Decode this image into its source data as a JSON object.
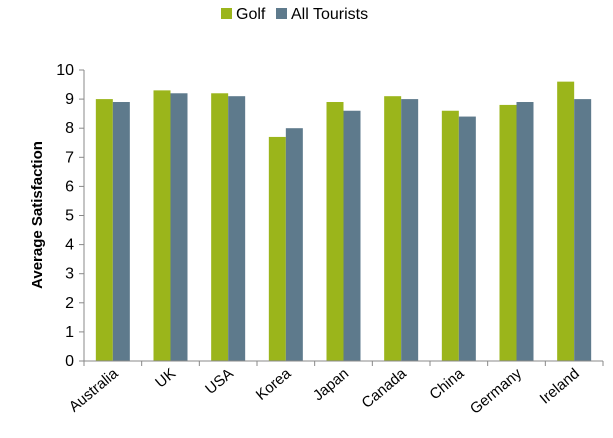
{
  "chart_data": {
    "type": "bar",
    "categories": [
      "Australia",
      "UK",
      "USA",
      "Korea",
      "Japan",
      "Canada",
      "China",
      "Germany",
      "Ireland"
    ],
    "series": [
      {
        "name": "Golf",
        "color": "#9BB51B",
        "values": [
          9.0,
          9.3,
          9.2,
          7.7,
          8.9,
          9.1,
          8.6,
          8.8,
          9.6
        ]
      },
      {
        "name": "All Tourists",
        "color": "#5E7A8C",
        "values": [
          8.9,
          9.2,
          9.1,
          8.0,
          8.6,
          9.0,
          8.4,
          8.9,
          9.0
        ]
      }
    ],
    "xlabel": "",
    "ylabel": "Average Satisfaction",
    "ylim": [
      0,
      10
    ],
    "yticks": [
      0,
      1,
      2,
      3,
      4,
      5,
      6,
      7,
      8,
      9,
      10
    ],
    "grid": false,
    "legend": "top-center"
  }
}
